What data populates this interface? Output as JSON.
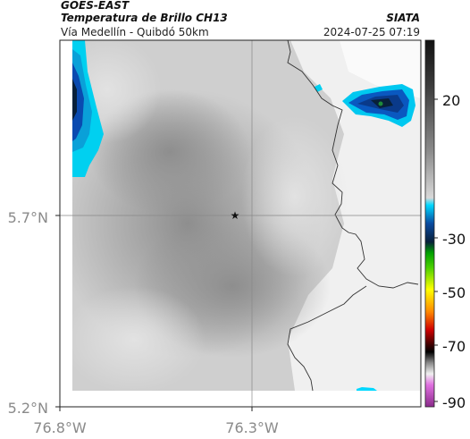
{
  "header": {
    "satellite": "GOES-EAST",
    "product": "Temperatura de Brillo CH13",
    "route": "Vía Medellín - Quibdó 50km",
    "organization": "SIATA",
    "datetime": "2024-07-25 07:19"
  },
  "axes": {
    "lat_labels": [
      "5.7°N",
      "5.2°N"
    ],
    "lon_labels": [
      "76.8°W",
      "76.3°W"
    ]
  },
  "colorbar": {
    "ticks": [
      "20",
      "-30",
      "-50",
      "-70",
      "-90"
    ]
  },
  "map": {
    "marker": "star-icon"
  }
}
